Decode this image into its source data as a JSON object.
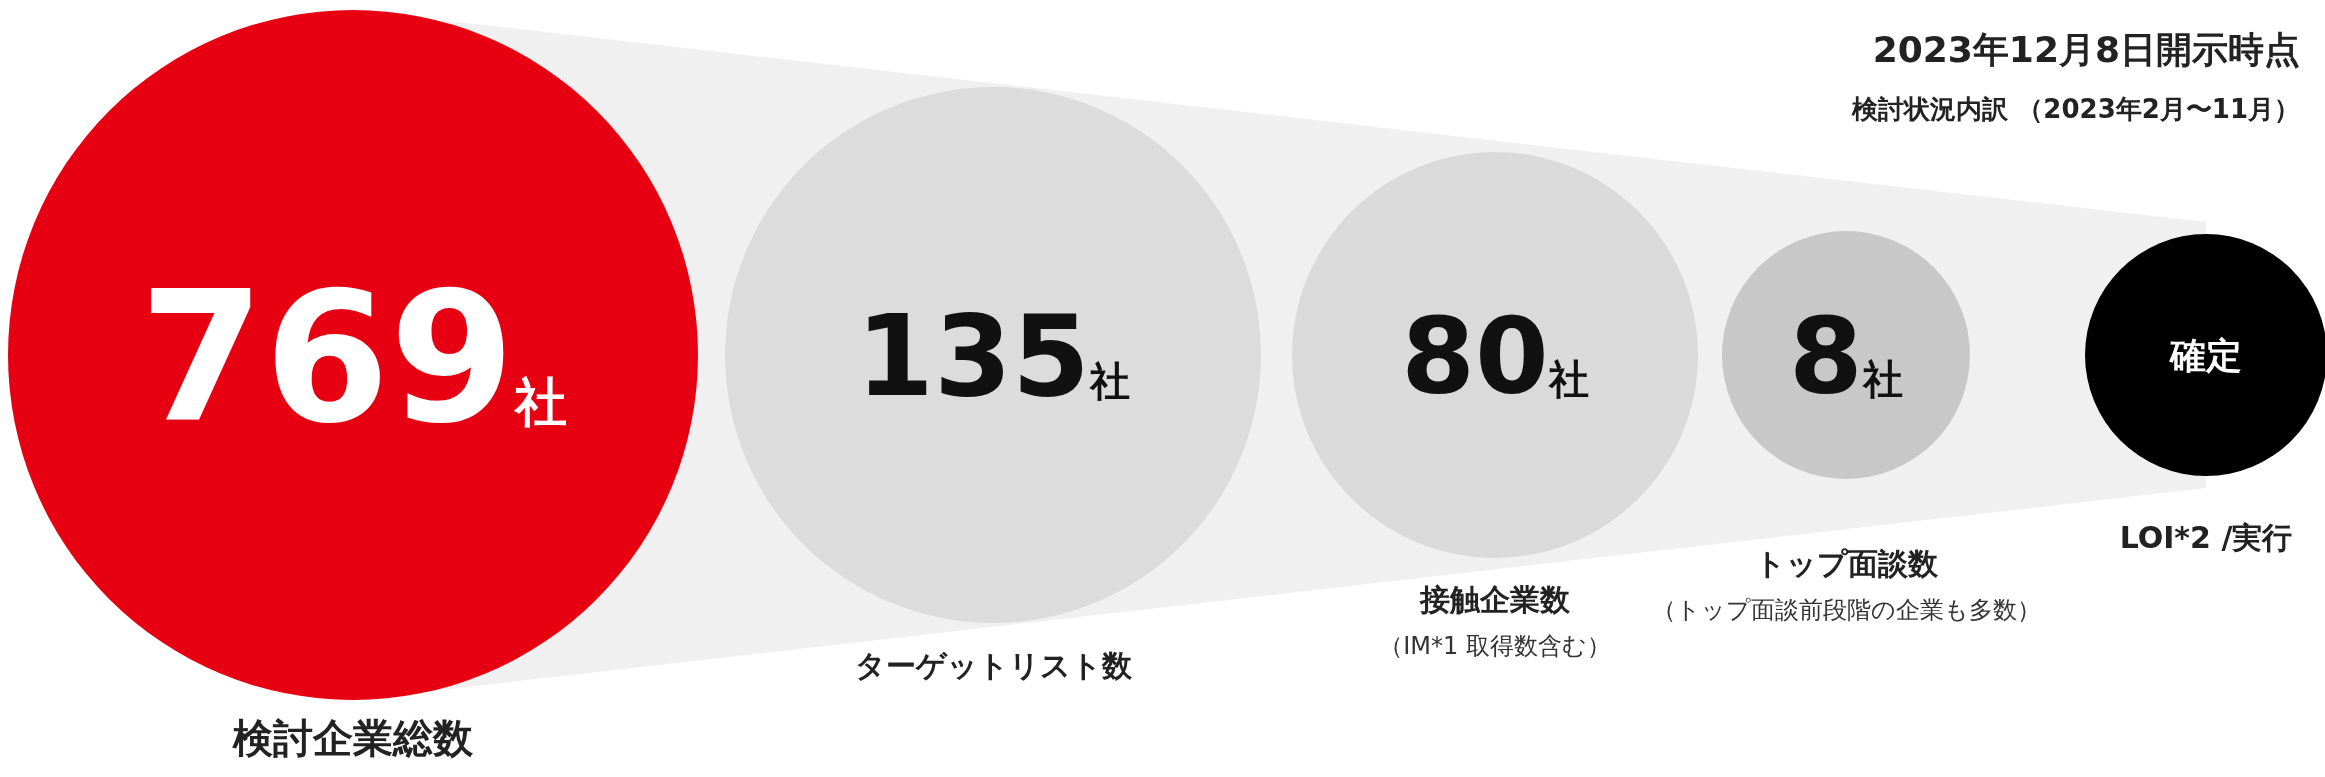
{
  "chart_data": {
    "type": "other",
    "title": "2023年12月8日開示時点",
    "subtitle": "検討状況内訳 （2023年2月〜11月）",
    "categories": [
      "検討企業総数",
      "ターゲットリスト数",
      "接触企業数",
      "トップ面談数",
      "LOI*2 /実行"
    ],
    "values": [
      769,
      135,
      80,
      8,
      null
    ],
    "value_labels": [
      "769社",
      "135社",
      "80社",
      "8社",
      "確定"
    ],
    "colors": [
      "#e60012",
      "#dcdcdc",
      "#dadada",
      "#c8c8c8",
      "#000000"
    ],
    "annotations": [
      {
        "text": "（IM*1 取得数含む）",
        "x": "接触企業数"
      },
      {
        "text": "（トップ面談前段階の企業も多数）",
        "x": "トップ面談数"
      }
    ]
  }
}
